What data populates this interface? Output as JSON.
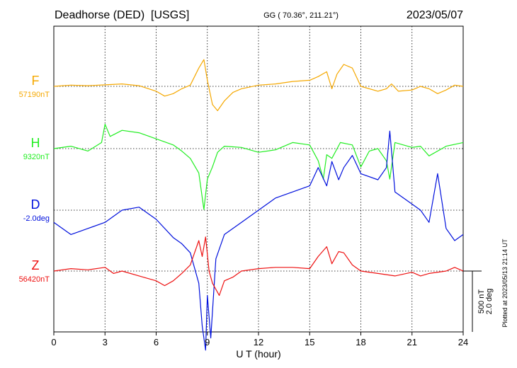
{
  "header": {
    "station": "Deadhorse (DED)  [USGS]",
    "coords": "GG ( 70.36°, 211.21°)",
    "date": "2023/05/07"
  },
  "side_note": "Plotted at 2023/05/13 21:14 UT",
  "scale_bar": {
    "line1": "500 nT",
    "line2": "2.0 deg"
  },
  "chart_data": {
    "type": "line",
    "xlabel": "U T (hour)",
    "xlim": [
      0,
      24
    ],
    "xticks": [
      0,
      3,
      6,
      9,
      12,
      15,
      18,
      21,
      24
    ],
    "grid": true,
    "scale": {
      "nT": 500,
      "deg": 2.0
    },
    "series": [
      {
        "name": "F",
        "baseline": "57190nT",
        "unit": "nT",
        "color": "#f5a800",
        "x": [
          0,
          1,
          2,
          3,
          4,
          5,
          6,
          6.5,
          7,
          7.5,
          8,
          8.5,
          8.8,
          9,
          9.3,
          9.6,
          10,
          10.5,
          11,
          12,
          13,
          14,
          15,
          15.5,
          16,
          16.3,
          16.6,
          17,
          17.5,
          18,
          19,
          19.5,
          19.8,
          20.2,
          21,
          21.5,
          22,
          22.5,
          23,
          23.5,
          24
        ],
        "values": [
          0,
          10,
          5,
          12,
          20,
          5,
          -40,
          -80,
          -60,
          -20,
          10,
          150,
          220,
          50,
          -150,
          -200,
          -120,
          -50,
          -20,
          10,
          20,
          40,
          50,
          80,
          120,
          -20,
          100,
          180,
          150,
          0,
          -40,
          -20,
          20,
          -40,
          -30,
          0,
          -20,
          -60,
          -30,
          10,
          0
        ]
      },
      {
        "name": "H",
        "baseline": "9320nT",
        "unit": "nT",
        "color": "#22ee22",
        "x": [
          0,
          1,
          2,
          2.8,
          3,
          3.3,
          4,
          5,
          6,
          7,
          7.5,
          8,
          8.5,
          8.8,
          9,
          9.3,
          9.6,
          10,
          11,
          12,
          13,
          14,
          15,
          15.5,
          15.8,
          16,
          16.3,
          16.8,
          17.5,
          18,
          18.5,
          19,
          19.5,
          19.7,
          20,
          21,
          21.5,
          22,
          23,
          24
        ],
        "values": [
          0,
          20,
          -20,
          50,
          200,
          100,
          150,
          130,
          80,
          30,
          -20,
          -80,
          -200,
          -500,
          -250,
          -150,
          -30,
          20,
          10,
          -30,
          -10,
          50,
          30,
          -100,
          -250,
          -50,
          -80,
          50,
          30,
          -150,
          -20,
          0,
          -100,
          -250,
          50,
          10,
          20,
          -60,
          20,
          50
        ]
      },
      {
        "name": "D",
        "baseline": "-2.0deg",
        "unit": "deg",
        "color": "#0010dd",
        "x": [
          0,
          1,
          2,
          3,
          4,
          5,
          6,
          7,
          7.5,
          8,
          8.5,
          8.7,
          8.9,
          9,
          9.2,
          9.5,
          10,
          11,
          12,
          13,
          14,
          15,
          15.5,
          16,
          16.3,
          16.7,
          17,
          17.5,
          18,
          19,
          19.5,
          19.7,
          20,
          21,
          21.5,
          22,
          22.5,
          23,
          23.5,
          24
        ],
        "values": [
          -0.4,
          -0.8,
          -0.6,
          -0.4,
          0,
          0.1,
          -0.3,
          -0.9,
          -1.1,
          -1.4,
          -2.4,
          -3.8,
          -4.6,
          -2.8,
          -4.2,
          -1.6,
          -0.8,
          -0.4,
          0,
          0.4,
          0.6,
          0.8,
          1.4,
          0.8,
          1.6,
          1.0,
          1.4,
          1.8,
          1.2,
          1.0,
          1.4,
          2.6,
          0.6,
          0.2,
          0.0,
          -0.4,
          1.2,
          -0.6,
          -1.0,
          -0.8
        ]
      },
      {
        "name": "Z",
        "baseline": "56420nT",
        "unit": "nT",
        "color": "#ee1111",
        "x": [
          0,
          1,
          2,
          3,
          3.5,
          4,
          5,
          6,
          6.5,
          7,
          7.5,
          8,
          8.5,
          8.7,
          8.9,
          9.1,
          9.3,
          9.7,
          10,
          10.5,
          11,
          12,
          13,
          14,
          15,
          15.5,
          16,
          16.3,
          16.7,
          17,
          17.5,
          18,
          19,
          20,
          21,
          21.5,
          22,
          23,
          23.5,
          24
        ],
        "values": [
          0,
          20,
          10,
          30,
          -20,
          0,
          -40,
          -80,
          -120,
          -80,
          -20,
          50,
          250,
          120,
          280,
          0,
          -100,
          -200,
          -80,
          -50,
          0,
          20,
          30,
          30,
          20,
          120,
          200,
          60,
          160,
          150,
          50,
          0,
          -20,
          -40,
          -10,
          -40,
          -20,
          0,
          30,
          0
        ]
      }
    ]
  }
}
